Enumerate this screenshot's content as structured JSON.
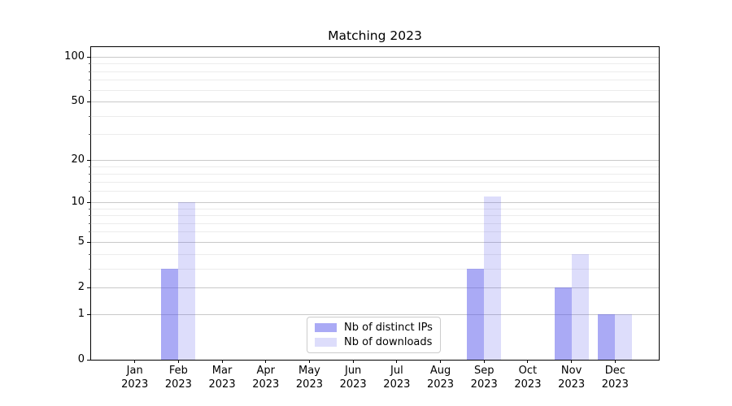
{
  "chart_data": {
    "type": "bar",
    "title": "Matching 2023",
    "categories": [
      "Jan\n2023",
      "Feb\n2023",
      "Mar\n2023",
      "Apr\n2023",
      "May\n2023",
      "Jun\n2023",
      "Jul\n2023",
      "Aug\n2023",
      "Sep\n2023",
      "Oct\n2023",
      "Nov\n2023",
      "Dec\n2023"
    ],
    "series": [
      {
        "name": "Nb of distinct IPs",
        "color": "rgba(85,85,235,0.5)",
        "values": [
          0,
          3,
          0,
          0,
          0,
          0,
          0,
          0,
          3,
          0,
          2,
          1
        ]
      },
      {
        "name": "Nb of downloads",
        "color": "rgba(85,85,235,0.2)",
        "values": [
          0,
          10,
          0,
          0,
          0,
          0,
          0,
          0,
          11,
          0,
          4,
          1
        ]
      }
    ],
    "xlabel": "",
    "ylabel": "",
    "yscale": "log1p",
    "yticks": [
      0,
      1,
      2,
      5,
      10,
      20,
      50,
      100
    ],
    "minor_yticks": [
      3,
      4,
      6,
      7,
      8,
      9,
      12,
      14,
      16,
      18,
      30,
      40,
      60,
      70,
      80,
      90
    ],
    "ylim": [
      0,
      116.6
    ],
    "grid": true,
    "legend_position": "lower center",
    "grid_major_color": "#c9c9c9",
    "grid_minor_color": "#ececec"
  }
}
